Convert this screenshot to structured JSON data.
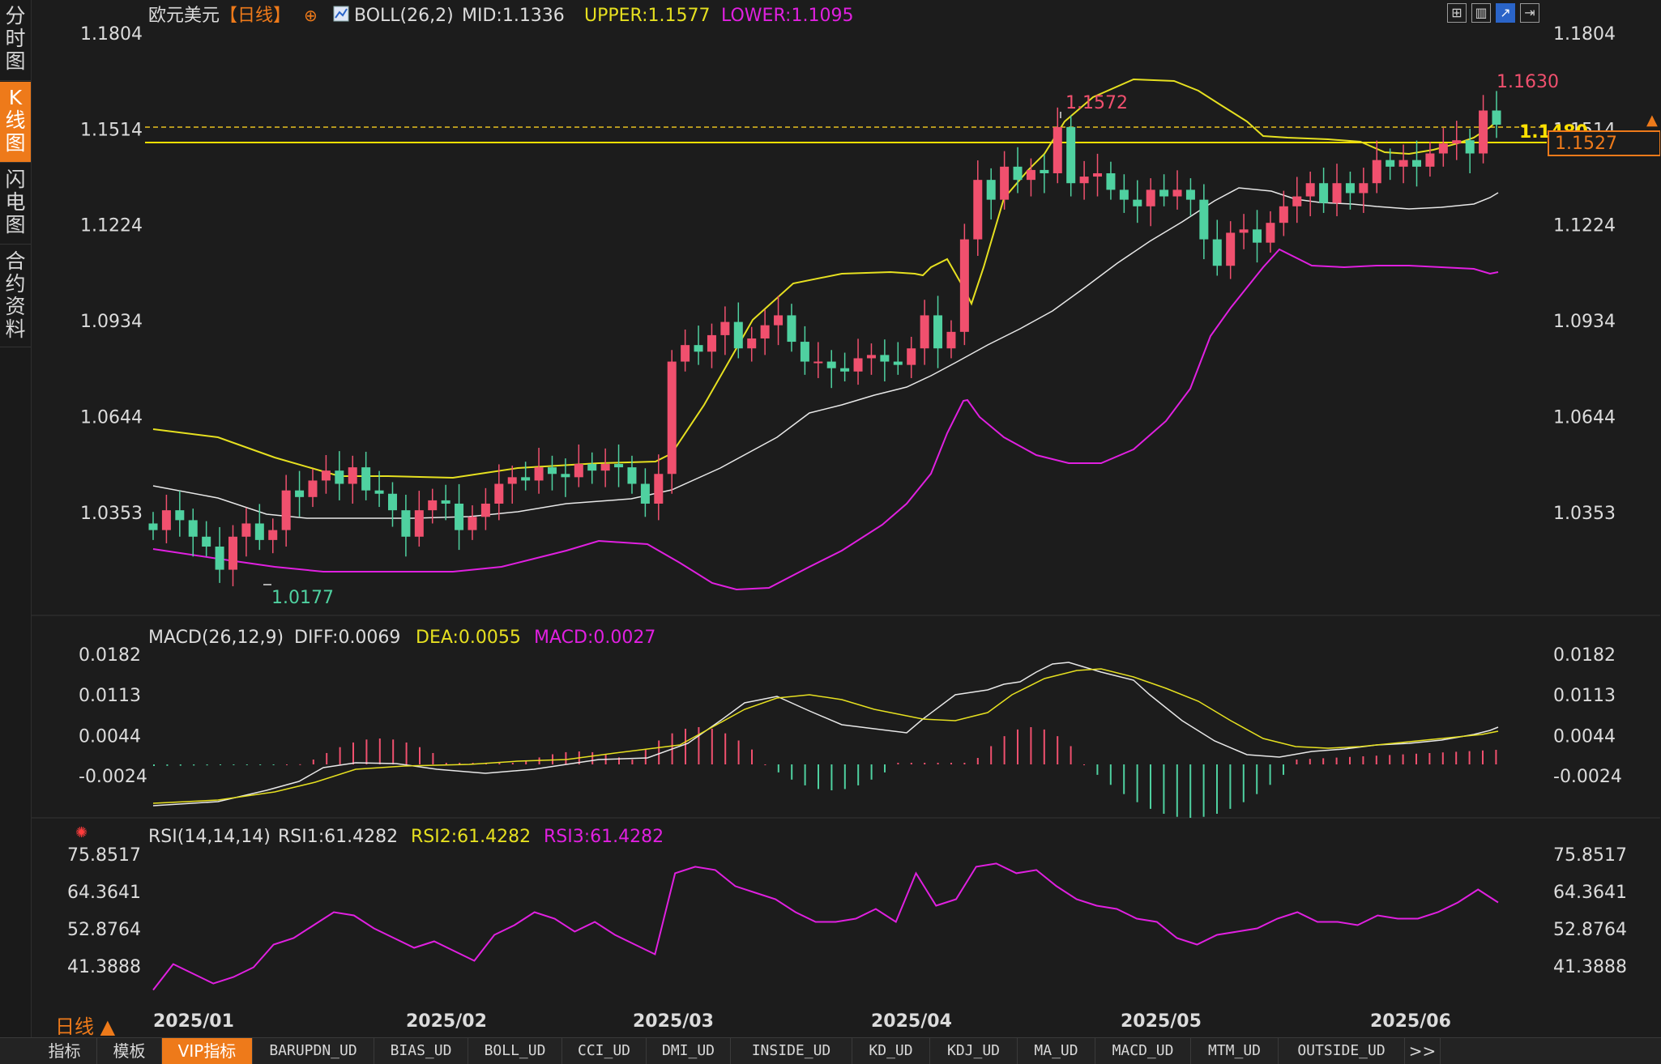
{
  "sidebar": {
    "tabs": [
      {
        "label": "分时图",
        "active": false
      },
      {
        "label": "K线图",
        "active": true
      },
      {
        "label": "闪电图",
        "active": false
      },
      {
        "label": "合约资料",
        "active": false
      }
    ]
  },
  "header": {
    "symbol": "欧元美元",
    "period_tag": "【日线】",
    "boll": {
      "label": "BOLL(26,2)",
      "mid": "MID:1.1336",
      "upper": "UPPER:1.1577",
      "lower": "LOWER:1.1095"
    }
  },
  "toolbar_icons": [
    "grid-icon",
    "candle-chart-icon",
    "indicator-icon",
    "export-icon"
  ],
  "price_panel": {
    "axis_labels": [
      "1.1804",
      "1.1514",
      "1.1224",
      "1.0934",
      "1.0644",
      "1.0353"
    ],
    "axis_values": [
      1.1804,
      1.1514,
      1.1224,
      1.0934,
      1.0644,
      1.0353
    ],
    "high_label": "1.1630",
    "mid_high_label": "1.1572",
    "low_label": "1.0177",
    "ref_line_label": "1.1480",
    "ref_line_value": 1.148,
    "current_price_label": "1.1527",
    "current_price_value": 1.1527
  },
  "macd_panel": {
    "label": "MACD(26,12,9)",
    "diff": "DIFF:0.0069",
    "dea": "DEA:0.0055",
    "macd": "MACD:0.0027",
    "axis_labels": [
      "0.0182",
      "0.0113",
      "0.0044",
      "-0.0024"
    ],
    "axis_values": [
      0.0182,
      0.0113,
      0.0044,
      -0.0024
    ]
  },
  "rsi_panel": {
    "label": "RSI(14,14,14)",
    "rsi1": "RSI1:61.4282",
    "rsi2": "RSI2:61.4282",
    "rsi3": "RSI3:61.4282",
    "axis_labels": [
      "75.8517",
      "64.3641",
      "52.8764",
      "41.3888"
    ],
    "axis_values": [
      75.8517,
      64.3641,
      52.8764,
      41.3888
    ]
  },
  "x_axis": {
    "labels": [
      "2025/01",
      "2025/02",
      "2025/03",
      "2025/04",
      "2025/05",
      "2025/06"
    ]
  },
  "period_label": "日线 ▲",
  "bottom_tabs": [
    "指标",
    "模板",
    "VIP指标",
    "BARUPDN_UD",
    "BIAS_UD",
    "BOLL_UD",
    "CCI_UD",
    "DMI_UD",
    "INSIDE_UD",
    "KD_UD",
    "KDJ_UD",
    "MA_UD",
    "MACD_UD",
    "MTM_UD",
    "OUTSIDE_UD",
    ">>"
  ],
  "colors": {
    "background": "#1c1c1c",
    "up_candle": "#f0506e",
    "down_candle": "#4fd1a0",
    "boll_mid": "#e8e8e8",
    "boll_upper": "#e6e020",
    "boll_lower": "#e020e0",
    "rsi": "#e020e0",
    "accent": "#ee7a1a",
    "ref_line": "#ffe000"
  },
  "chart_data": {
    "type": "candlestick",
    "title": "欧元美元【日线】",
    "period": "daily",
    "ylim": [
      1.01,
      1.185
    ],
    "months": [
      "2025/01",
      "2025/02",
      "2025/03",
      "2025/04",
      "2025/05",
      "2025/06"
    ],
    "closes": [
      1.03,
      1.036,
      1.033,
      1.028,
      1.025,
      1.018,
      1.028,
      1.032,
      1.027,
      1.03,
      1.042,
      1.04,
      1.045,
      1.048,
      1.044,
      1.049,
      1.042,
      1.041,
      1.036,
      1.028,
      1.036,
      1.039,
      1.038,
      1.03,
      1.034,
      1.038,
      1.044,
      1.046,
      1.045,
      1.049,
      1.047,
      1.046,
      1.05,
      1.048,
      1.05,
      1.049,
      1.044,
      1.038,
      1.047,
      1.081,
      1.086,
      1.084,
      1.089,
      1.093,
      1.085,
      1.088,
      1.092,
      1.095,
      1.087,
      1.081,
      1.081,
      1.079,
      1.078,
      1.082,
      1.083,
      1.081,
      1.08,
      1.085,
      1.095,
      1.085,
      1.09,
      1.118,
      1.136,
      1.13,
      1.14,
      1.136,
      1.139,
      1.138,
      1.152,
      1.135,
      1.137,
      1.138,
      1.133,
      1.13,
      1.128,
      1.133,
      1.131,
      1.133,
      1.13,
      1.118,
      1.11,
      1.12,
      1.121,
      1.117,
      1.123,
      1.128,
      1.131,
      1.135,
      1.129,
      1.135,
      1.132,
      1.135,
      1.142,
      1.14,
      1.142,
      1.14,
      1.144,
      1.147,
      1.148,
      1.144,
      1.157,
      1.1527
    ],
    "boll": {
      "mid": 1.1336,
      "upper": 1.1577,
      "lower": 1.1095
    },
    "high": 1.163,
    "low": 1.0177,
    "macd": {
      "diff": 0.0069,
      "dea": 0.0055,
      "macd": 0.0027
    },
    "rsi": {
      "rsi1": 61.4282,
      "rsi2": 61.4282,
      "rsi3": 61.4282
    },
    "rsi_series": [
      34,
      42,
      39,
      36,
      38,
      41,
      48,
      50,
      54,
      58,
      57,
      53,
      50,
      47,
      49,
      46,
      43,
      51,
      54,
      58,
      56,
      52,
      55,
      51,
      48,
      45,
      70,
      72,
      71,
      66,
      64,
      62,
      58,
      55,
      55,
      56,
      59,
      55,
      70,
      60,
      62,
      72,
      73,
      70,
      71,
      66,
      62,
      60,
      59,
      56,
      55,
      50,
      48,
      51,
      52,
      53,
      56,
      58,
      55,
      55,
      54,
      57,
      56,
      56,
      58,
      61,
      65,
      61
    ]
  }
}
